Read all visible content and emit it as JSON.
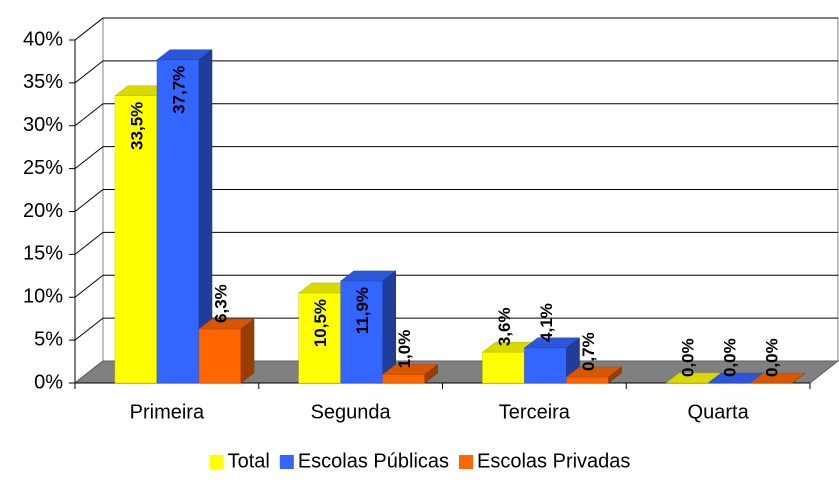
{
  "chart_data": {
    "type": "bar3d",
    "categories": [
      "Primeira",
      "Segunda",
      "Terceira",
      "Quarta"
    ],
    "series": [
      {
        "name": "Total",
        "color": "#ffff00",
        "values": [
          33.5,
          10.5,
          3.6,
          0.0
        ],
        "value_labels": [
          "33,5%",
          "10,5%",
          "3,6%",
          "0,0%"
        ]
      },
      {
        "name": "Escolas Públicas",
        "color": "#3366ff",
        "values": [
          37.7,
          11.9,
          4.1,
          0.0
        ],
        "value_labels": [
          "37,7%",
          "11,9%",
          "4,1%",
          "0,0%"
        ]
      },
      {
        "name": "Escolas Privadas",
        "color": "#ff6600",
        "values": [
          6.3,
          1.0,
          0.7,
          0.0
        ],
        "value_labels": [
          "6,3%",
          "1,0%",
          "0,7%",
          "0,0%"
        ]
      }
    ],
    "ylim": [
      0,
      40
    ],
    "yticks": [
      {
        "value": 0,
        "label": "0%"
      },
      {
        "value": 5,
        "label": "5%"
      },
      {
        "value": 10,
        "label": "10%"
      },
      {
        "value": 15,
        "label": "15%"
      },
      {
        "value": 20,
        "label": "20%"
      },
      {
        "value": 25,
        "label": "25%"
      },
      {
        "value": 30,
        "label": "30%"
      },
      {
        "value": 35,
        "label": "35%"
      },
      {
        "value": 40,
        "label": "40%"
      }
    ],
    "grid": true,
    "legend": "bottom"
  }
}
